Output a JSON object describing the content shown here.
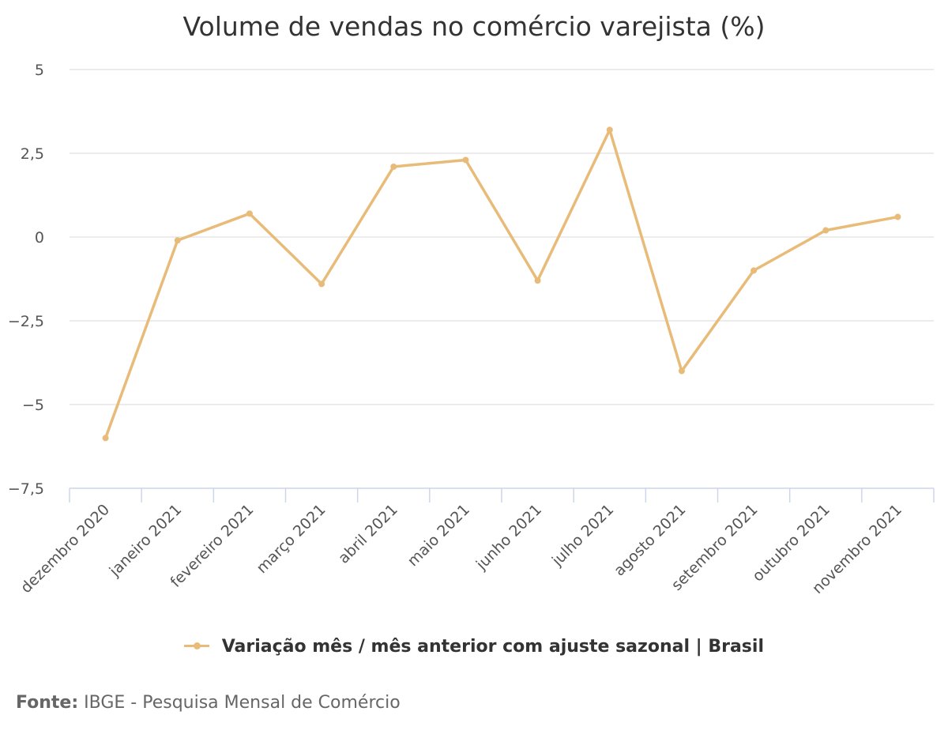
{
  "chart_data": {
    "type": "line",
    "title": "Volume de vendas no comércio varejista (%)",
    "xlabel": "",
    "ylabel": "",
    "categories": [
      "dezembro 2020",
      "janeiro 2021",
      "fevereiro 2021",
      "março 2021",
      "abril 2021",
      "maio 2021",
      "junho 2021",
      "julho 2021",
      "agosto 2021",
      "setembro 2021",
      "outubro 2021",
      "novembro 2021"
    ],
    "series": [
      {
        "name": "Variação mês / mês anterior com ajuste sazonal | Brasil",
        "values": [
          -6.0,
          -0.1,
          0.7,
          -1.4,
          2.1,
          2.3,
          -1.3,
          3.2,
          -4.0,
          -1.0,
          0.2,
          0.6
        ],
        "color": "#e8bb78"
      }
    ],
    "yticks": [
      "5",
      "2,5",
      "0",
      "−2,5",
      "−5",
      "−7,5"
    ],
    "ylim": [
      -7.5,
      5
    ],
    "grid": true,
    "legend": "bottom-center"
  },
  "source": {
    "label": "Fonte:",
    "text": "IBGE - Pesquisa Mensal de Comércio"
  },
  "colors": {
    "series": "#e8bb78",
    "grid": "#e6e6e6",
    "axis": "#ccd6eb"
  }
}
